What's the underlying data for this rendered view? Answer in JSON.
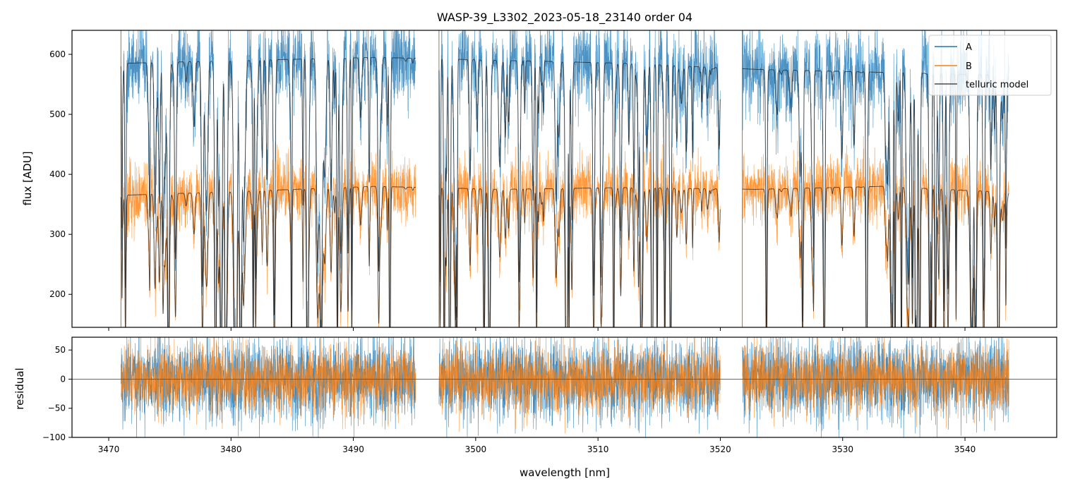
{
  "figure": {
    "title": "WASP-39_L3302_2023-05-18_23140  order 04"
  },
  "colors": {
    "A": "#1f77b4",
    "B": "#ff7f0e",
    "model": "#222222",
    "zero_line": "#555555"
  },
  "chart_data": [
    {
      "type": "line",
      "panel": "flux",
      "title": "WASP-39_L3302_2023-05-18_23140  order 04",
      "xlabel": "",
      "ylabel": "flux [ADU]",
      "xlim": [
        3467,
        3547.5
      ],
      "ylim": [
        145,
        640
      ],
      "x_ticks": [
        3470,
        3480,
        3490,
        3500,
        3510,
        3520,
        3530,
        3540
      ],
      "y_ticks": [
        200,
        300,
        400,
        500,
        600
      ],
      "grid": false,
      "legend": "top-right",
      "segments": [
        [
          3471.0,
          3495.1
        ],
        [
          3497.0,
          3520.0
        ],
        [
          3521.8,
          3543.6
        ]
      ],
      "series": [
        {
          "name": "A",
          "color": "#1f77b4",
          "baseline": 580,
          "noise": 35,
          "alpha": 0.8
        },
        {
          "name": "B",
          "color": "#ff7f0e",
          "baseline": 380,
          "noise": 25,
          "alpha": 0.8
        },
        {
          "name": "telluric model",
          "color": "#222222",
          "alpha": 0.8
        }
      ],
      "model_levels": {
        "A": [
          585,
          590,
          595,
          590,
          585,
          575,
          570,
          565
        ],
        "B": [
          365,
          372,
          380,
          375,
          378,
          375,
          380,
          370
        ]
      }
    },
    {
      "type": "line",
      "panel": "residual",
      "xlabel": "wavelength [nm]",
      "ylabel": "residual",
      "xlim": [
        3467,
        3547.5
      ],
      "ylim": [
        -100,
        72
      ],
      "x_ticks": [
        3470,
        3480,
        3490,
        3500,
        3510,
        3520,
        3530,
        3540
      ],
      "y_ticks": [
        -100,
        -50,
        0,
        50
      ],
      "zero_line": 0,
      "segments": [
        [
          3471.0,
          3495.1
        ],
        [
          3497.0,
          3520.0
        ],
        [
          3521.8,
          3543.6
        ]
      ],
      "series": [
        {
          "name": "A",
          "color": "#1f77b4",
          "noise": 35
        },
        {
          "name": "B",
          "color": "#ff7f0e",
          "noise": 28
        }
      ]
    }
  ]
}
